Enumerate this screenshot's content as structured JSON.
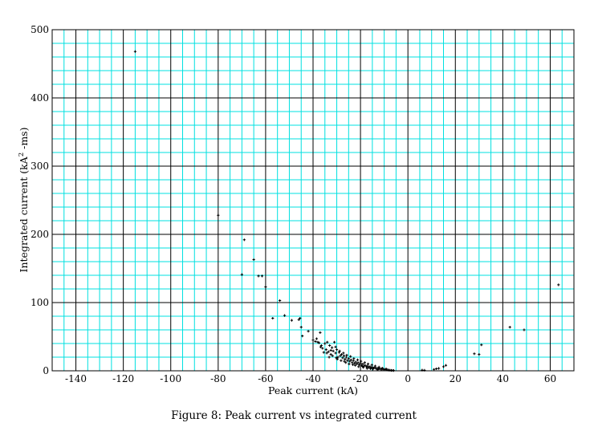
{
  "chart_data": {
    "type": "scatter",
    "title": "",
    "xlabel": "Peak current (kA)",
    "ylabel_main": "Integrated current (kA",
    "ylabel_sup": "2",
    "ylabel_tail": " -ms)",
    "caption": "Figure 8: Peak current vs integrated current",
    "xlim": [
      -150,
      70
    ],
    "ylim": [
      0,
      500
    ],
    "x_ticks": [
      -140,
      -120,
      -100,
      -80,
      -60,
      -40,
      -20,
      0,
      20,
      40,
      60
    ],
    "y_ticks": [
      0,
      100,
      200,
      300,
      400,
      500
    ],
    "x_tick_labels": [
      "-140",
      "-120",
      "-100",
      "-80",
      "-60",
      "-40",
      "-20",
      "0",
      "20",
      "40",
      "60"
    ],
    "y_tick_labels": [
      "0",
      "100",
      "200",
      "300",
      "400",
      "500"
    ],
    "x_major_step": 20,
    "x_minor_step": 5,
    "y_major_step": 100,
    "y_minor_step": 20,
    "grid": true,
    "colors": {
      "major_grid": "#000000",
      "minor_grid": "#00e0e0",
      "marker": "#000000"
    },
    "points": [
      [
        -115,
        468
      ],
      [
        -80,
        228
      ],
      [
        -69,
        192
      ],
      [
        -70,
        141
      ],
      [
        -65,
        163
      ],
      [
        -63,
        139
      ],
      [
        -61.5,
        139
      ],
      [
        -60,
        123
      ],
      [
        -57,
        77
      ],
      [
        -54,
        103
      ],
      [
        -52,
        81
      ],
      [
        -49,
        74
      ],
      [
        -46,
        75
      ],
      [
        -45.5,
        77
      ],
      [
        -45,
        64
      ],
      [
        -44.5,
        51
      ],
      [
        -42,
        58
      ],
      [
        -40,
        45
      ],
      [
        -39,
        43
      ],
      [
        -38.5,
        47
      ],
      [
        -38,
        42
      ],
      [
        -37,
        56
      ],
      [
        -37.5,
        41
      ],
      [
        -36.5,
        37
      ],
      [
        -36,
        33
      ],
      [
        -35,
        40
      ],
      [
        -34.5,
        31
      ],
      [
        -34,
        42
      ],
      [
        -33.5,
        28
      ],
      [
        -33,
        37
      ],
      [
        -32.5,
        24
      ],
      [
        -32,
        34
      ],
      [
        -31.5,
        29
      ],
      [
        -31,
        42
      ],
      [
        -30.5,
        26
      ],
      [
        -30,
        31
      ],
      [
        -29.5,
        20
      ],
      [
        -29,
        27
      ],
      [
        -28.5,
        22
      ],
      [
        -28,
        24
      ],
      [
        -27.5,
        19
      ],
      [
        -27,
        22
      ],
      [
        -26.5,
        17
      ],
      [
        -26,
        20
      ],
      [
        -25.5,
        15
      ],
      [
        -25,
        18
      ],
      [
        -24.5,
        14
      ],
      [
        -24,
        16
      ],
      [
        -23.5,
        12
      ],
      [
        -23,
        15
      ],
      [
        -22.5,
        11
      ],
      [
        -22,
        13
      ],
      [
        -21.5,
        10
      ],
      [
        -21,
        12
      ],
      [
        -20.5,
        9
      ],
      [
        -20,
        11
      ],
      [
        -19.5,
        8
      ],
      [
        -19,
        10
      ],
      [
        -18.5,
        7
      ],
      [
        -18,
        8
      ],
      [
        -17.5,
        6
      ],
      [
        -17,
        7
      ],
      [
        -16.5,
        5
      ],
      [
        -16,
        6
      ],
      [
        -15.5,
        4.5
      ],
      [
        -15,
        5
      ],
      [
        -14.5,
        4
      ],
      [
        -14,
        4.5
      ],
      [
        -13.5,
        3.5
      ],
      [
        -13,
        3.5
      ],
      [
        -12.5,
        3
      ],
      [
        -12,
        3
      ],
      [
        -11.5,
        2.5
      ],
      [
        -11,
        2.5
      ],
      [
        -10.5,
        2
      ],
      [
        -10,
        2
      ],
      [
        -9.5,
        1.6
      ],
      [
        -9,
        1.5
      ],
      [
        -8.5,
        1.2
      ],
      [
        -8,
        1
      ],
      [
        -7.5,
        0.8
      ],
      [
        -7,
        0.6
      ],
      [
        -6.5,
        0.5
      ],
      [
        -6,
        0.4
      ],
      [
        -32.5,
        30
      ],
      [
        -30.5,
        35
      ],
      [
        -28.8,
        29
      ],
      [
        -27.2,
        26
      ],
      [
        -25.8,
        23
      ],
      [
        -24.2,
        21
      ],
      [
        -22.8,
        18
      ],
      [
        -21.2,
        16
      ],
      [
        -19.8,
        14
      ],
      [
        -18.2,
        12
      ],
      [
        -16.8,
        10
      ],
      [
        -15.2,
        8.5
      ],
      [
        -13.8,
        7
      ],
      [
        -12.2,
        5.5
      ],
      [
        -10.8,
        4
      ],
      [
        -9.2,
        3
      ],
      [
        -33.2,
        20
      ],
      [
        -29.8,
        17
      ],
      [
        -26.2,
        12
      ],
      [
        -22.2,
        8
      ],
      [
        -18.8,
        5
      ],
      [
        -14.8,
        2.5
      ],
      [
        -35.5,
        27
      ],
      [
        -31.8,
        22
      ],
      [
        -28.2,
        15
      ],
      [
        -24.8,
        10
      ],
      [
        -20.8,
        6
      ],
      [
        -17.2,
        3.5
      ],
      [
        -12.8,
        1.5
      ],
      [
        -36.8,
        35
      ],
      [
        -34.2,
        26
      ],
      [
        -30.2,
        19
      ],
      [
        -26.8,
        14
      ],
      [
        -23.2,
        9
      ],
      [
        -19.2,
        6.5
      ],
      [
        -15.8,
        3.2
      ],
      [
        6,
        1
      ],
      [
        7,
        0.8
      ],
      [
        11,
        2
      ],
      [
        12,
        3
      ],
      [
        13,
        3.5
      ],
      [
        15,
        6
      ],
      [
        16,
        8
      ],
      [
        28,
        25
      ],
      [
        30,
        24
      ],
      [
        31,
        38
      ],
      [
        43,
        64
      ],
      [
        49,
        60
      ],
      [
        63.5,
        126
      ]
    ]
  }
}
